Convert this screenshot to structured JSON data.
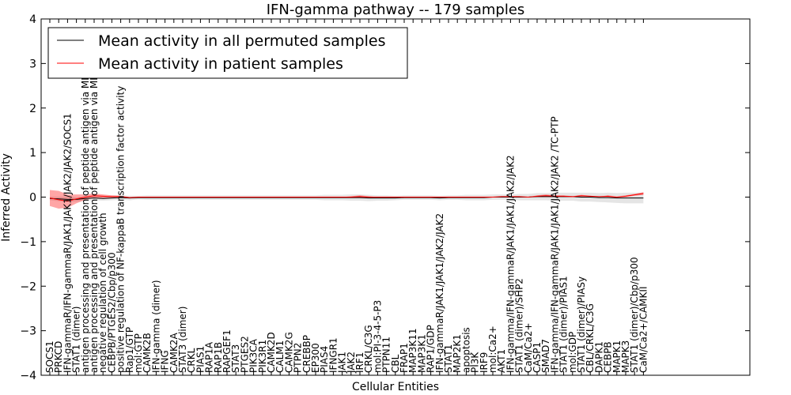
{
  "chart_data": {
    "type": "line",
    "title": "IFN-gamma pathway -- 179 samples",
    "xlabel": "Cellular Entities",
    "ylabel": "Inferred Activity",
    "ylim": [
      -4,
      4
    ],
    "yticks": [
      -4,
      -3,
      -2,
      -1,
      0,
      1,
      2,
      3,
      4
    ],
    "legend_position": "top-left",
    "categories": [
      "SOCS1",
      "PRKCD",
      "IFN-gammaR/IFN-gammaR/JAK1/JAK1/JAK2/JAK2/SOCS1",
      "STAT1 (dimer)",
      "antigen processing and presentation of peptide antigen via MHC class I",
      "antigen processing and presentation of peptide antigen via MHC class II",
      "negative regulation of cell growth",
      "CEBPB/PTGES2/Cbp/p300",
      "positive regulation of NF-kappaB transcription factor activity",
      "Rap1/GTP",
      "mol:GTP",
      "CAMK2B",
      "IFN-gamma (dimer)",
      "IFNG",
      "CAMK2A",
      "STAT3 (dimer)",
      "CRKL",
      "PIAS1",
      "RAP1A",
      "RAP1B",
      "RAPGEF1",
      "STAT3",
      "PTGES2",
      "PIK3CA",
      "PIK3R1",
      "CAMK2D",
      "CALM1",
      "CAMK2G",
      "PTPN2",
      "CREBBP",
      "EP300",
      "PIAS4",
      "IFNGR1",
      "JAK1",
      "JAK2",
      "IRF1",
      "CRKL/C3G",
      "mol:PI-3-4-5-P3",
      "PTPN11",
      "CBL",
      "FRAP1",
      "MAP3K11",
      "MAP3K1",
      "RAP1/GDP",
      "IFN-gammaR/JAK1/JAK1/JAK2/JAK2",
      "STAT1",
      "MAP2K1",
      "apoptosis",
      "PI3K",
      "IRF9",
      "mol:Ca2+",
      "AKT1",
      "IFN-gamma/IFN-gammaR/JAK1/JAK1/JAK2/JAK2",
      "STAT1 (dimer)/SHP2",
      "CaM/Ca2+",
      "CASP1",
      "SMAD7",
      "IFN-gamma/IFN-gammaR/JAK1/JAK1/JAK2/JAK2 /TC-PTP",
      "STAT1 (dimer)/PIAS1",
      "mol:GDP",
      "STAT1 (dimer)/PIASy",
      "CBL/CRKL/C3G",
      "DAPK1",
      "CEBPB",
      "MAPK1",
      "MAPK3",
      "STAT1 (dimer)/Cbp/p300",
      "CaM/Ca2+/CAMKII"
    ],
    "series": [
      {
        "name": "Mean activity in all permuted samples",
        "color": "#000000",
        "values": [
          -0.03,
          -0.04,
          -0.05,
          -0.05,
          -0.03,
          -0.02,
          -0.03,
          -0.02,
          -0.01,
          -0.02,
          -0.01,
          -0.01,
          -0.01,
          -0.01,
          -0.01,
          -0.01,
          -0.01,
          -0.01,
          -0.01,
          -0.01,
          -0.01,
          -0.01,
          -0.01,
          -0.01,
          -0.01,
          -0.01,
          -0.01,
          -0.01,
          -0.01,
          -0.01,
          -0.01,
          -0.01,
          -0.01,
          -0.01,
          -0.01,
          -0.01,
          -0.02,
          -0.02,
          -0.02,
          -0.02,
          -0.01,
          -0.01,
          -0.01,
          -0.01,
          -0.02,
          -0.01,
          -0.01,
          -0.01,
          -0.01,
          -0.01,
          0.0,
          0.0,
          0.0,
          0.0,
          0.0,
          0.01,
          0.01,
          0.01,
          0.01,
          0.01,
          0.0,
          0.0,
          -0.01,
          -0.01,
          -0.02,
          -0.02,
          -0.02,
          -0.02
        ],
        "band": [
          0.04,
          0.05,
          0.06,
          0.05,
          0.05,
          0.05,
          0.05,
          0.05,
          0.05,
          0.05,
          0.04,
          0.05,
          0.05,
          0.05,
          0.05,
          0.05,
          0.05,
          0.05,
          0.05,
          0.05,
          0.05,
          0.05,
          0.05,
          0.05,
          0.05,
          0.05,
          0.05,
          0.05,
          0.05,
          0.05,
          0.05,
          0.06,
          0.06,
          0.06,
          0.07,
          0.07,
          0.07,
          0.06,
          0.06,
          0.05,
          0.05,
          0.05,
          0.05,
          0.05,
          0.05,
          0.05,
          0.05,
          0.06,
          0.06,
          0.06,
          0.06,
          0.06,
          0.06,
          0.07,
          0.07,
          0.08,
          0.08,
          0.09,
          0.09,
          0.09,
          0.1,
          0.1,
          0.1,
          0.11,
          0.11,
          0.12,
          0.12,
          0.12
        ]
      },
      {
        "name": "Mean activity in patient samples",
        "color": "#ff0000",
        "values": [
          -0.02,
          -0.06,
          -0.09,
          -0.04,
          0.0,
          0.03,
          0.02,
          0.01,
          0.01,
          -0.01,
          0.0,
          0.0,
          0.0,
          0.0,
          0.0,
          0.0,
          0.0,
          0.0,
          0.0,
          0.0,
          0.0,
          0.0,
          0.0,
          0.0,
          0.0,
          0.0,
          0.0,
          0.0,
          0.0,
          0.0,
          0.0,
          0.0,
          0.0,
          0.0,
          0.0,
          0.01,
          0.0,
          0.0,
          0.0,
          0.0,
          0.0,
          0.0,
          0.0,
          0.0,
          0.0,
          0.0,
          0.0,
          0.0,
          0.0,
          0.0,
          0.0,
          0.01,
          0.01,
          0.01,
          0.0,
          0.02,
          0.03,
          0.02,
          0.02,
          0.01,
          0.03,
          0.02,
          0.01,
          0.02,
          0.0,
          0.02,
          0.05,
          0.08
        ],
        "band": [
          0.18,
          0.2,
          0.15,
          0.1,
          0.06,
          0.05,
          0.04,
          0.03,
          0.02,
          0.01,
          0.0,
          0.0,
          0.0,
          0.0,
          0.0,
          0.0,
          0.0,
          0.0,
          0.0,
          0.0,
          0.0,
          0.0,
          0.0,
          0.0,
          0.0,
          0.0,
          0.0,
          0.0,
          0.0,
          0.0,
          0.0,
          0.0,
          0.0,
          0.0,
          0.02,
          0.03,
          0.02,
          0.0,
          0.0,
          0.0,
          0.0,
          0.0,
          0.0,
          0.0,
          0.0,
          0.0,
          0.0,
          0.0,
          0.0,
          0.0,
          0.0,
          0.0,
          0.0,
          0.0,
          0.0,
          0.02,
          0.03,
          0.02,
          0.02,
          0.01,
          0.02,
          0.01,
          0.0,
          0.02,
          0.01,
          0.02,
          0.02,
          0.03
        ]
      }
    ]
  }
}
